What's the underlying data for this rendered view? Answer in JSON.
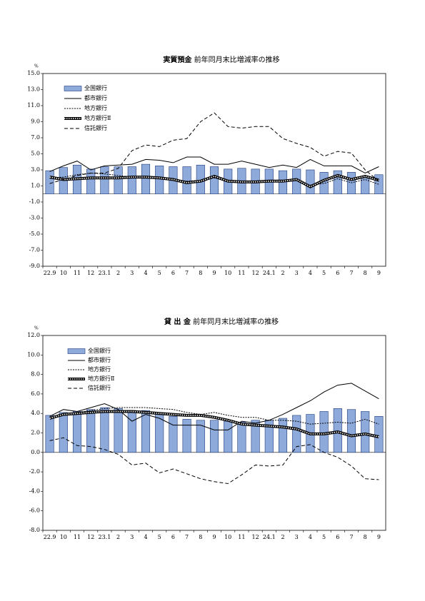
{
  "chart_data": [
    {
      "type": "combo",
      "title": "実質預金",
      "subtitle": "前年同月末比増減率の推移",
      "y_unit": "%",
      "categories": [
        "22.9",
        "10",
        "11",
        "12",
        "23.1",
        "2",
        "3",
        "4",
        "5",
        "6",
        "7",
        "8",
        "9",
        "10",
        "11",
        "12",
        "24.1",
        "2",
        "3",
        "4",
        "5",
        "6",
        "7",
        "8",
        "9"
      ],
      "ylim": [
        -9,
        15
      ],
      "yticks": [
        {
          "value": 15,
          "label": "15.0"
        },
        {
          "value": 13,
          "label": "13.0"
        },
        {
          "value": 11,
          "label": "11.0"
        },
        {
          "value": 9,
          "label": "9.0"
        },
        {
          "value": 7,
          "label": "7.0"
        },
        {
          "value": 5,
          "label": "5.0"
        },
        {
          "value": 3,
          "label": "3.0"
        },
        {
          "value": 1,
          "label": "1.0"
        },
        {
          "value": -1,
          "label": "-1.0"
        },
        {
          "value": -3,
          "label": "-3.0"
        },
        {
          "value": -5,
          "label": "-5.0"
        },
        {
          "value": -7,
          "label": "-7.0"
        },
        {
          "value": -9,
          "label": "-9.0"
        }
      ],
      "legend": "upper left",
      "series": [
        {
          "name": "全国銀行",
          "kind": "bar",
          "color": "#8eaadb",
          "values": [
            2.9,
            3.3,
            3.6,
            3.1,
            3.4,
            3.4,
            3.4,
            3.7,
            3.5,
            3.4,
            3.4,
            3.6,
            3.4,
            3.1,
            3.2,
            3.1,
            3.1,
            2.9,
            3.1,
            3.0,
            2.7,
            2.9,
            2.7,
            2.2,
            2.4
          ]
        },
        {
          "name": "都市銀行",
          "kind": "line",
          "style": "solid",
          "color": "#000000",
          "values": [
            2.8,
            3.5,
            4.1,
            3.0,
            3.5,
            3.6,
            3.7,
            4.3,
            4.2,
            3.9,
            4.6,
            4.6,
            3.7,
            3.7,
            4.1,
            3.7,
            3.3,
            3.6,
            3.3,
            4.3,
            3.5,
            3.5,
            3.5,
            2.6,
            3.4
          ]
        },
        {
          "name": "地方銀行",
          "kind": "line",
          "style": "dotted",
          "color": "#000000",
          "values": [
            2.0,
            2.1,
            2.4,
            2.6,
            2.5,
            2.3,
            2.1,
            2.1,
            2.0,
            1.8,
            1.6,
            1.7,
            2.0,
            1.6,
            1.5,
            1.6,
            1.7,
            1.6,
            1.7,
            1.1,
            1.3,
            1.9,
            1.4,
            1.8,
            1.2
          ]
        },
        {
          "name": "地方銀行Ⅱ",
          "kind": "line",
          "style": "thick",
          "color": "#000000",
          "values": [
            2.1,
            1.8,
            1.9,
            2.0,
            2.0,
            2.0,
            2.1,
            2.1,
            2.0,
            1.8,
            1.4,
            1.6,
            2.2,
            1.6,
            1.5,
            1.5,
            1.6,
            1.6,
            1.8,
            0.9,
            1.7,
            2.3,
            1.8,
            2.2,
            1.7
          ]
        },
        {
          "name": "信託銀行",
          "kind": "line",
          "style": "dashed",
          "color": "#000000",
          "values": [
            1.3,
            1.8,
            2.3,
            2.6,
            2.6,
            3.2,
            5.4,
            6.1,
            5.9,
            6.7,
            6.9,
            9.0,
            10.1,
            8.4,
            8.2,
            8.4,
            8.4,
            6.9,
            6.3,
            5.8,
            4.7,
            5.3,
            5.1,
            3.0,
            1.6
          ]
        }
      ]
    },
    {
      "type": "combo",
      "title": "貸 出 金",
      "subtitle": "前年同月末比増減率の推移",
      "y_unit": "%",
      "categories": [
        "22.9",
        "10",
        "11",
        "12",
        "23.1",
        "2",
        "3",
        "4",
        "5",
        "6",
        "7",
        "8",
        "9",
        "10",
        "11",
        "12",
        "24.1",
        "2",
        "3",
        "4",
        "5",
        "6",
        "7",
        "8",
        "9"
      ],
      "ylim": [
        -8,
        12
      ],
      "yticks": [
        {
          "value": 12,
          "label": "12.0"
        },
        {
          "value": 10,
          "label": "10.0"
        },
        {
          "value": 8,
          "label": "8.0"
        },
        {
          "value": 6,
          "label": "6.0"
        },
        {
          "value": 4,
          "label": "4.0"
        },
        {
          "value": 2,
          "label": "2.0"
        },
        {
          "value": 0,
          "label": "0.0"
        },
        {
          "value": -2,
          "label": "-2.0"
        },
        {
          "value": -4,
          "label": "-4.0"
        },
        {
          "value": -6,
          "label": "-6.0"
        },
        {
          "value": -8,
          "label": "-8.0"
        }
      ],
      "legend": "upper left",
      "series": [
        {
          "name": "全国銀行",
          "kind": "bar",
          "color": "#8eaadb",
          "values": [
            3.8,
            4.1,
            4.2,
            4.4,
            4.6,
            4.5,
            4.3,
            4.3,
            3.9,
            3.7,
            3.4,
            3.3,
            3.3,
            3.2,
            3.1,
            3.3,
            3.3,
            3.5,
            3.8,
            3.9,
            4.2,
            4.5,
            4.4,
            4.2,
            3.7
          ]
        },
        {
          "name": "都市銀行",
          "kind": "line",
          "style": "solid",
          "color": "#000000",
          "values": [
            3.7,
            4.4,
            4.2,
            4.6,
            5.0,
            4.4,
            3.2,
            3.9,
            3.5,
            2.8,
            2.8,
            2.8,
            2.3,
            2.3,
            3.2,
            3.0,
            3.3,
            3.9,
            4.6,
            5.3,
            6.2,
            6.9,
            7.1,
            6.3,
            5.5
          ]
        },
        {
          "name": "地方銀行",
          "kind": "line",
          "style": "dotted",
          "color": "#000000",
          "values": [
            3.6,
            3.8,
            4.1,
            4.3,
            4.5,
            4.6,
            4.6,
            4.6,
            4.5,
            4.4,
            4.1,
            3.9,
            4.1,
            3.8,
            3.6,
            3.6,
            3.3,
            3.3,
            3.2,
            2.9,
            3.0,
            3.1,
            3.0,
            3.4,
            2.9
          ]
        },
        {
          "name": "地方銀行Ⅱ",
          "kind": "line",
          "style": "thick",
          "color": "#000000",
          "values": [
            3.5,
            3.9,
            4.0,
            4.1,
            4.2,
            4.2,
            4.2,
            4.1,
            4.0,
            3.9,
            3.8,
            3.8,
            3.6,
            3.3,
            2.9,
            2.8,
            2.7,
            2.6,
            2.4,
            1.9,
            1.9,
            2.1,
            1.7,
            1.9,
            1.6
          ]
        },
        {
          "name": "信託銀行",
          "kind": "line",
          "style": "dashed",
          "color": "#000000",
          "values": [
            1.2,
            1.5,
            0.7,
            0.6,
            0.3,
            -0.2,
            -1.3,
            -1.1,
            -2.1,
            -1.7,
            -2.2,
            -2.7,
            -3.0,
            -3.2,
            -2.3,
            -1.3,
            -1.4,
            -1.3,
            0.6,
            0.8,
            0.0,
            -0.5,
            -1.4,
            -2.7,
            -2.8
          ]
        }
      ]
    }
  ]
}
